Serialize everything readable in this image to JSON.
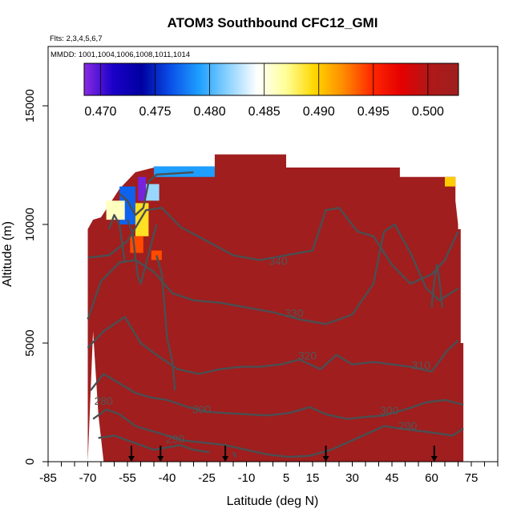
{
  "chart_data": {
    "type": "heatmap",
    "title": "ATOM3 Southbound CFC12_GMI",
    "flights_note": "Flts: 2,3,4,5,6,7",
    "dates_note": "MMDD: 1001,1004,1006,1008,1011,1014",
    "xlabel": "Latitude (deg N)",
    "ylabel": "Altitude (m)",
    "xlim": [
      -85,
      85
    ],
    "ylim": [
      0,
      17500
    ],
    "x_ticks": [
      -85,
      -70,
      -55,
      -40,
      -25,
      -10,
      5,
      15,
      30,
      45,
      60,
      75
    ],
    "x_tick_labels": [
      "-85",
      "-70",
      "-55",
      "-40",
      "-25",
      "-10",
      "5",
      "15",
      "30",
      "45",
      "60",
      "75"
    ],
    "y_ticks": [
      0,
      5000,
      10000,
      15000
    ],
    "y_tick_labels": [
      "0",
      "5000",
      "10000",
      "15000"
    ],
    "colorbar": {
      "range": [
        0.4685,
        0.5028
      ],
      "ticks": [
        0.47,
        0.475,
        0.48,
        0.485,
        0.49,
        0.495,
        0.5
      ],
      "tick_labels": [
        "0.470",
        "0.475",
        "0.480",
        "0.485",
        "0.490",
        "0.495",
        "0.500"
      ],
      "colors": [
        "#8a2be2",
        "#1a00c8",
        "#0000a0",
        "#0a50e8",
        "#1ea0ff",
        "#8cd2ff",
        "#ffffff",
        "#ffff9a",
        "#ffd700",
        "#ff8c00",
        "#ff2800",
        "#e60000",
        "#b01818",
        "#9e1f1f"
      ]
    },
    "field": {
      "background_value": 0.502,
      "background_color": "#a01e1e",
      "data_region": [
        [
          -70,
          0
        ],
        [
          -70,
          9800
        ],
        [
          -68,
          10200
        ],
        [
          -65,
          10300
        ],
        [
          -58,
          11500
        ],
        [
          -52,
          12200
        ],
        [
          -45,
          12400
        ],
        [
          -22,
          12400
        ],
        [
          -22,
          12950
        ],
        [
          5,
          12950
        ],
        [
          5,
          12400
        ],
        [
          48,
          12400
        ],
        [
          48,
          12000
        ],
        [
          69,
          12000
        ],
        [
          69,
          11000
        ],
        [
          70,
          10000
        ],
        [
          70,
          9800
        ],
        [
          71,
          9800
        ],
        [
          71,
          5000
        ],
        [
          72,
          5000
        ],
        [
          72,
          0
        ],
        [
          -64,
          0
        ],
        [
          -66,
          2000
        ],
        [
          -68,
          5500
        ]
      ],
      "low_value_patches": [
        {
          "points": [
            [
              -45,
              12450
            ],
            [
              -22,
              12450
            ],
            [
              -22,
              12000
            ],
            [
              -45,
              12000
            ]
          ],
          "value": 0.479
        },
        {
          "points": [
            [
              -50,
              11700
            ],
            [
              -43,
              11700
            ],
            [
              -43,
              11000
            ],
            [
              -50,
              11000
            ]
          ],
          "value": 0.482
        },
        {
          "points": [
            [
              -58,
              11600
            ],
            [
              -52,
              11600
            ],
            [
              -52,
              10000
            ],
            [
              -58,
              10000
            ]
          ],
          "value": 0.477
        },
        {
          "points": [
            [
              -52,
              10900
            ],
            [
              -47,
              10900
            ],
            [
              -47,
              9500
            ],
            [
              -52,
              9500
            ]
          ],
          "value": 0.489
        },
        {
          "points": [
            [
              -63,
              11000
            ],
            [
              -56,
              11000
            ],
            [
              -56,
              10200
            ],
            [
              -63,
              10200
            ]
          ],
          "value": 0.486
        },
        {
          "points": [
            [
              -54,
              9500
            ],
            [
              -49,
              9500
            ],
            [
              -49,
              8800
            ],
            [
              -54,
              8800
            ]
          ],
          "value": 0.494
        },
        {
          "points": [
            [
              -46,
              8900
            ],
            [
              -42,
              8900
            ],
            [
              -42,
              8500
            ],
            [
              -46,
              8500
            ]
          ],
          "value": 0.494
        },
        {
          "points": [
            [
              65,
              12000
            ],
            [
              69,
              12000
            ],
            [
              69,
              11600
            ],
            [
              65,
              11600
            ]
          ],
          "value": 0.49
        },
        {
          "points": [
            [
              -51,
              12000
            ],
            [
              -48,
              12000
            ],
            [
              -48,
              11000
            ],
            [
              -51,
              11000
            ]
          ],
          "value": 0.469
        }
      ]
    },
    "contours": {
      "labels": [
        {
          "text": "340",
          "x": 2,
          "y": 8300
        },
        {
          "text": "330",
          "x": 8,
          "y": 6100
        },
        {
          "text": "320",
          "x": 13,
          "y": 4300
        },
        {
          "text": "310",
          "x": 56,
          "y": 3900
        },
        {
          "text": "300",
          "x": -27,
          "y": 2050
        },
        {
          "text": "300",
          "x": 44,
          "y": 2000
        },
        {
          "text": "290",
          "x": -37,
          "y": 800
        },
        {
          "text": "290",
          "x": 51,
          "y": 1350
        },
        {
          "text": "280",
          "x": -64,
          "y": 2400
        }
      ],
      "lines": [
        [
          [
            -70,
            8600
          ],
          [
            -62,
            8700
          ],
          [
            -55,
            9300
          ],
          [
            -48,
            10600
          ],
          [
            -42,
            10700
          ],
          [
            -35,
            9900
          ],
          [
            -25,
            9300
          ],
          [
            -15,
            8700
          ],
          [
            -5,
            8500
          ],
          [
            5,
            8700
          ],
          [
            15,
            8900
          ],
          [
            20,
            10600
          ],
          [
            25,
            10700
          ],
          [
            32,
            9700
          ],
          [
            38,
            9500
          ],
          [
            45,
            8300
          ],
          [
            52,
            7500
          ],
          [
            60,
            7900
          ],
          [
            65,
            8500
          ],
          [
            70,
            9700
          ]
        ],
        [
          [
            -70,
            6000
          ],
          [
            -65,
            7600
          ],
          [
            -58,
            8400
          ],
          [
            -52,
            8500
          ],
          [
            -45,
            8000
          ],
          [
            -38,
            7100
          ],
          [
            -30,
            6800
          ],
          [
            -20,
            6700
          ],
          [
            -10,
            6500
          ],
          [
            0,
            6300
          ],
          [
            10,
            6000
          ],
          [
            20,
            5800
          ],
          [
            30,
            6200
          ],
          [
            38,
            7500
          ],
          [
            42,
            9700
          ],
          [
            46,
            10000
          ],
          [
            52,
            8800
          ],
          [
            58,
            7300
          ],
          [
            63,
            6800
          ],
          [
            70,
            7300
          ]
        ],
        [
          [
            -70,
            4800
          ],
          [
            -64,
            5500
          ],
          [
            -56,
            6100
          ],
          [
            -50,
            5000
          ],
          [
            -44,
            4500
          ],
          [
            -36,
            3900
          ],
          [
            -28,
            3700
          ],
          [
            -20,
            3900
          ],
          [
            -12,
            4000
          ],
          [
            -5,
            4000
          ],
          [
            3,
            4100
          ],
          [
            10,
            4300
          ],
          [
            18,
            3900
          ],
          [
            24,
            4500
          ],
          [
            30,
            4100
          ],
          [
            38,
            4200
          ],
          [
            45,
            4100
          ],
          [
            52,
            4000
          ],
          [
            60,
            3800
          ],
          [
            66,
            4700
          ],
          [
            70,
            5100
          ]
        ],
        [
          [
            -69,
            3000
          ],
          [
            -64,
            3700
          ],
          [
            -58,
            3300
          ],
          [
            -52,
            2900
          ],
          [
            -46,
            2700
          ],
          [
            -40,
            2600
          ],
          [
            -32,
            2300
          ],
          [
            -25,
            2100
          ],
          [
            -18,
            2050
          ],
          [
            -10,
            2000
          ],
          [
            -2,
            1950
          ],
          [
            6,
            2050
          ],
          [
            14,
            2300
          ],
          [
            20,
            2000
          ],
          [
            28,
            1800
          ],
          [
            36,
            1900
          ],
          [
            42,
            1950
          ],
          [
            50,
            2200
          ],
          [
            58,
            2500
          ],
          [
            65,
            2600
          ],
          [
            72,
            2400
          ]
        ],
        [
          [
            -68,
            1800
          ],
          [
            -63,
            2200
          ],
          [
            -58,
            2000
          ],
          [
            -52,
            1500
          ],
          [
            -46,
            1300
          ],
          [
            -40,
            1100
          ],
          [
            -34,
            900
          ],
          [
            -26,
            800
          ],
          [
            -18,
            700
          ],
          [
            -10,
            500
          ],
          [
            -2,
            300
          ],
          [
            6,
            200
          ],
          [
            14,
            250
          ],
          [
            22,
            500
          ],
          [
            30,
            900
          ],
          [
            36,
            1200
          ],
          [
            42,
            1500
          ],
          [
            48,
            1400
          ],
          [
            55,
            1300
          ],
          [
            62,
            1200
          ],
          [
            68,
            1100
          ],
          [
            72,
            1400
          ]
        ],
        [
          [
            -66,
            1000
          ],
          [
            -60,
            1100
          ],
          [
            -55,
            900
          ],
          [
            -50,
            700
          ],
          [
            -45,
            500
          ],
          [
            -40,
            600
          ],
          [
            -35,
            700
          ],
          [
            -30,
            500
          ],
          [
            -24,
            400
          ]
        ],
        [
          [
            -58,
            11300
          ],
          [
            -55,
            11000
          ],
          [
            -52,
            10400
          ],
          [
            -49,
            10700
          ],
          [
            -47,
            11800
          ],
          [
            -44,
            12100
          ],
          [
            -30,
            12200
          ]
        ],
        [
          [
            -55,
            10200
          ],
          [
            -53,
            9600
          ],
          [
            -52,
            8600
          ],
          [
            -51,
            7800
          ],
          [
            -50,
            7500
          ],
          [
            -48,
            8300
          ],
          [
            -46,
            9200
          ],
          [
            -44,
            10000
          ]
        ],
        [
          [
            -62,
            9800
          ],
          [
            -60,
            10400
          ],
          [
            -58,
            10000
          ],
          [
            -57,
            9200
          ],
          [
            -56,
            8400
          ]
        ],
        [
          [
            -44,
            8700
          ],
          [
            -42,
            7900
          ],
          [
            -40,
            5200
          ],
          [
            -38,
            4200
          ],
          [
            -37,
            3000
          ]
        ],
        [
          [
            -15,
            400
          ],
          [
            -14,
            200
          ]
        ],
        [
          [
            60,
            6500
          ],
          [
            61,
            7600
          ],
          [
            62,
            8300
          ],
          [
            63,
            7600
          ],
          [
            64,
            6500
          ]
        ]
      ]
    },
    "flight_markers_x": [
      -53.5,
      -42.5,
      -18,
      20,
      61
    ]
  }
}
